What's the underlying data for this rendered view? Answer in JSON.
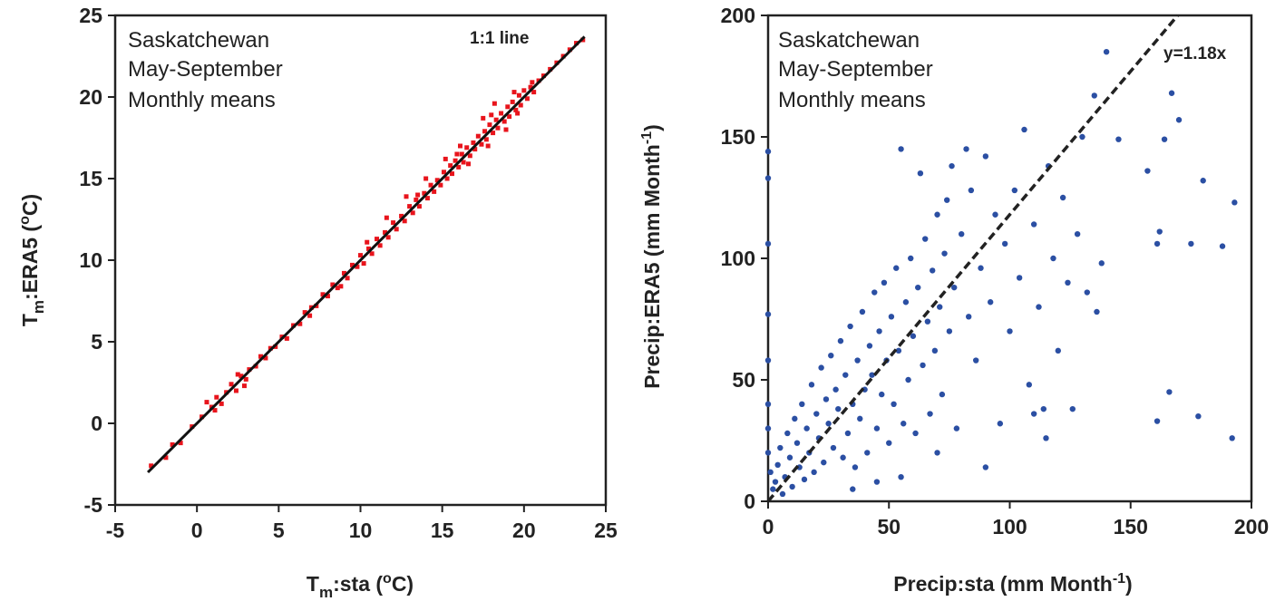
{
  "chart_data": [
    {
      "type": "scatter",
      "xlabel_main": "T",
      "xlabel_sub": "m",
      "xlabel_rest": ":sta  (",
      "xlabel_sup": "o",
      "xlabel_end": "C)",
      "ylabel_main": "T",
      "ylabel_sub": "m",
      "ylabel_rest": ":ERA5  (",
      "ylabel_sup": "o",
      "ylabel_end": "C)",
      "xlim": [
        -5,
        25
      ],
      "ylim": [
        -5,
        25
      ],
      "xticks": [
        "-5",
        "0",
        "5",
        "10",
        "15",
        "20",
        "25"
      ],
      "yticks": [
        "-5",
        "0",
        "5",
        "10",
        "15",
        "20",
        "25"
      ],
      "annotations": [
        "Saskatchewan",
        "May-September",
        "Monthly means"
      ],
      "line_label": "1:1 line",
      "point_color": "#e8141c",
      "line_color": "#111111",
      "line": {
        "x": [
          -3,
          23.7
        ],
        "y": [
          -3,
          23.7
        ]
      },
      "points": [
        [
          -2.8,
          -2.6
        ],
        [
          -1.9,
          -2.1
        ],
        [
          -1.5,
          -1.3
        ],
        [
          -1.0,
          -1.2
        ],
        [
          -0.3,
          -0.2
        ],
        [
          0.3,
          0.4
        ],
        [
          0.6,
          1.3
        ],
        [
          0.9,
          1.0
        ],
        [
          1.2,
          1.6
        ],
        [
          1.5,
          1.2
        ],
        [
          1.8,
          1.9
        ],
        [
          2.1,
          2.4
        ],
        [
          2.4,
          2.0
        ],
        [
          2.7,
          2.9
        ],
        [
          2.9,
          2.3
        ],
        [
          3.2,
          3.3
        ],
        [
          3.6,
          3.5
        ],
        [
          3.9,
          4.1
        ],
        [
          4.2,
          4.0
        ],
        [
          4.5,
          4.6
        ],
        [
          4.8,
          4.7
        ],
        [
          5.2,
          5.3
        ],
        [
          5.5,
          5.2
        ],
        [
          5.9,
          6.0
        ],
        [
          6.3,
          6.1
        ],
        [
          6.6,
          6.8
        ],
        [
          7.0,
          7.1
        ],
        [
          7.3,
          7.2
        ],
        [
          7.7,
          7.9
        ],
        [
          8.0,
          7.8
        ],
        [
          8.3,
          8.5
        ],
        [
          8.6,
          8.3
        ],
        [
          9.0,
          9.2
        ],
        [
          9.2,
          8.9
        ],
        [
          9.5,
          9.7
        ],
        [
          9.8,
          9.6
        ],
        [
          10.0,
          10.3
        ],
        [
          10.2,
          9.8
        ],
        [
          10.5,
          10.7
        ],
        [
          10.7,
          10.4
        ],
        [
          11.0,
          11.3
        ],
        [
          11.2,
          10.9
        ],
        [
          11.5,
          11.7
        ],
        [
          11.7,
          11.4
        ],
        [
          12.0,
          12.3
        ],
        [
          12.2,
          11.9
        ],
        [
          12.5,
          12.7
        ],
        [
          12.7,
          12.4
        ],
        [
          13.0,
          13.3
        ],
        [
          13.2,
          12.9
        ],
        [
          13.4,
          13.7
        ],
        [
          13.6,
          13.3
        ],
        [
          13.9,
          14.1
        ],
        [
          14.1,
          13.8
        ],
        [
          14.3,
          14.6
        ],
        [
          14.5,
          14.2
        ],
        [
          14.7,
          14.9
        ],
        [
          14.9,
          14.6
        ],
        [
          15.1,
          15.4
        ],
        [
          15.3,
          15.0
        ],
        [
          15.5,
          15.8
        ],
        [
          15.6,
          15.3
        ],
        [
          15.8,
          16.1
        ],
        [
          16.0,
          15.7
        ],
        [
          16.2,
          16.5
        ],
        [
          16.3,
          16.0
        ],
        [
          16.5,
          16.9
        ],
        [
          16.7,
          16.4
        ],
        [
          16.9,
          17.2
        ],
        [
          17.0,
          16.8
        ],
        [
          17.2,
          17.6
        ],
        [
          17.4,
          17.1
        ],
        [
          17.6,
          17.9
        ],
        [
          17.7,
          17.4
        ],
        [
          17.9,
          18.3
        ],
        [
          18.1,
          17.8
        ],
        [
          18.3,
          18.6
        ],
        [
          18.4,
          18.1
        ],
        [
          18.6,
          19.0
        ],
        [
          18.8,
          18.5
        ],
        [
          19.0,
          19.4
        ],
        [
          19.1,
          18.8
        ],
        [
          19.3,
          19.7
        ],
        [
          19.5,
          19.2
        ],
        [
          19.7,
          20.1
        ],
        [
          19.8,
          19.5
        ],
        [
          20.0,
          20.4
        ],
        [
          20.2,
          19.9
        ],
        [
          20.4,
          20.6
        ],
        [
          20.6,
          20.3
        ],
        [
          20.9,
          21.0
        ],
        [
          21.2,
          21.3
        ],
        [
          21.6,
          21.7
        ],
        [
          22.0,
          22.1
        ],
        [
          22.4,
          22.5
        ],
        [
          22.8,
          22.9
        ],
        [
          23.2,
          23.3
        ],
        [
          23.6,
          23.5
        ],
        [
          18.2,
          19.6
        ],
        [
          17.5,
          18.7
        ],
        [
          16.1,
          17.0
        ],
        [
          15.2,
          16.2
        ],
        [
          14.0,
          15.0
        ],
        [
          12.8,
          13.9
        ],
        [
          11.6,
          12.6
        ],
        [
          10.4,
          11.1
        ],
        [
          19.6,
          19.0
        ],
        [
          18.9,
          18.0
        ],
        [
          17.8,
          17.0
        ],
        [
          16.6,
          15.9
        ],
        [
          3.0,
          2.7
        ],
        [
          2.5,
          3.0
        ],
        [
          1.1,
          0.8
        ],
        [
          6.9,
          6.6
        ],
        [
          8.8,
          8.4
        ],
        [
          13.5,
          14.0
        ],
        [
          20.5,
          20.9
        ],
        [
          19.4,
          20.3
        ],
        [
          18.0,
          18.9
        ],
        [
          15.9,
          16.5
        ]
      ]
    },
    {
      "type": "scatter",
      "xlabel_main": "Precip:sta (mm Month",
      "xlabel_sup": "-1",
      "xlabel_end": ")",
      "ylabel_main": "Precip:ERA5 (mm Month",
      "ylabel_sup": "-1",
      "ylabel_end": ")",
      "xlim": [
        0,
        200
      ],
      "ylim": [
        0,
        200
      ],
      "xticks": [
        "0",
        "50",
        "100",
        "150",
        "200"
      ],
      "yticks": [
        "0",
        "50",
        "100",
        "150",
        "200"
      ],
      "annotations": [
        "Saskatchewan",
        "May-September",
        "Monthly means"
      ],
      "line_label": "y=1.18x",
      "point_color": "#2b4fa3",
      "line_color": "#222222",
      "line": {
        "x": [
          0,
          169.5
        ],
        "y": [
          0,
          200
        ]
      },
      "points": [
        [
          0,
          144
        ],
        [
          0,
          133
        ],
        [
          0,
          106
        ],
        [
          0,
          77
        ],
        [
          0,
          58
        ],
        [
          0,
          40
        ],
        [
          0,
          30
        ],
        [
          0,
          20
        ],
        [
          1,
          12
        ],
        [
          2,
          5
        ],
        [
          3,
          8
        ],
        [
          4,
          15
        ],
        [
          5,
          22
        ],
        [
          6,
          3
        ],
        [
          7,
          10
        ],
        [
          8,
          28
        ],
        [
          9,
          18
        ],
        [
          10,
          6
        ],
        [
          11,
          34
        ],
        [
          12,
          24
        ],
        [
          13,
          14
        ],
        [
          14,
          40
        ],
        [
          15,
          9
        ],
        [
          16,
          30
        ],
        [
          17,
          20
        ],
        [
          18,
          48
        ],
        [
          19,
          12
        ],
        [
          20,
          36
        ],
        [
          21,
          26
        ],
        [
          22,
          55
        ],
        [
          23,
          16
        ],
        [
          24,
          42
        ],
        [
          25,
          32
        ],
        [
          26,
          60
        ],
        [
          27,
          22
        ],
        [
          28,
          46
        ],
        [
          29,
          38
        ],
        [
          30,
          66
        ],
        [
          31,
          18
        ],
        [
          32,
          52
        ],
        [
          33,
          28
        ],
        [
          34,
          72
        ],
        [
          35,
          40
        ],
        [
          36,
          14
        ],
        [
          37,
          58
        ],
        [
          38,
          34
        ],
        [
          39,
          78
        ],
        [
          40,
          46
        ],
        [
          41,
          20
        ],
        [
          42,
          64
        ],
        [
          43,
          52
        ],
        [
          44,
          86
        ],
        [
          45,
          30
        ],
        [
          46,
          70
        ],
        [
          47,
          44
        ],
        [
          48,
          90
        ],
        [
          49,
          58
        ],
        [
          50,
          24
        ],
        [
          51,
          76
        ],
        [
          52,
          40
        ],
        [
          53,
          96
        ],
        [
          54,
          62
        ],
        [
          55,
          145
        ],
        [
          56,
          32
        ],
        [
          57,
          82
        ],
        [
          58,
          50
        ],
        [
          59,
          100
        ],
        [
          60,
          68
        ],
        [
          61,
          28
        ],
        [
          62,
          88
        ],
        [
          63,
          135
        ],
        [
          64,
          56
        ],
        [
          65,
          108
        ],
        [
          66,
          74
        ],
        [
          67,
          36
        ],
        [
          68,
          95
        ],
        [
          69,
          62
        ],
        [
          70,
          118
        ],
        [
          71,
          80
        ],
        [
          72,
          44
        ],
        [
          73,
          102
        ],
        [
          74,
          124
        ],
        [
          75,
          70
        ],
        [
          76,
          138
        ],
        [
          77,
          88
        ],
        [
          78,
          30
        ],
        [
          80,
          110
        ],
        [
          82,
          145
        ],
        [
          83,
          76
        ],
        [
          84,
          128
        ],
        [
          86,
          58
        ],
        [
          88,
          96
        ],
        [
          90,
          142
        ],
        [
          92,
          82
        ],
        [
          94,
          118
        ],
        [
          96,
          32
        ],
        [
          98,
          106
        ],
        [
          100,
          70
        ],
        [
          102,
          128
        ],
        [
          104,
          92
        ],
        [
          106,
          153
        ],
        [
          108,
          48
        ],
        [
          110,
          114
        ],
        [
          112,
          80
        ],
        [
          114,
          38
        ],
        [
          116,
          138
        ],
        [
          118,
          100
        ],
        [
          120,
          62
        ],
        [
          122,
          125
        ],
        [
          124,
          90
        ],
        [
          126,
          38
        ],
        [
          128,
          110
        ],
        [
          130,
          150
        ],
        [
          132,
          86
        ],
        [
          135,
          167
        ],
        [
          136,
          78
        ],
        [
          138,
          98
        ],
        [
          140,
          185
        ],
        [
          145,
          149
        ],
        [
          157,
          136
        ],
        [
          161,
          106
        ],
        [
          162,
          111
        ],
        [
          164,
          149
        ],
        [
          166,
          45
        ],
        [
          167,
          168
        ],
        [
          170,
          157
        ],
        [
          175,
          106
        ],
        [
          180,
          132
        ],
        [
          188,
          105
        ],
        [
          193,
          123
        ],
        [
          161,
          33
        ],
        [
          178,
          35
        ],
        [
          192,
          26
        ],
        [
          115,
          26
        ],
        [
          110,
          36
        ],
        [
          90,
          14
        ],
        [
          70,
          20
        ],
        [
          55,
          10
        ],
        [
          45,
          8
        ],
        [
          35,
          5
        ]
      ]
    }
  ]
}
